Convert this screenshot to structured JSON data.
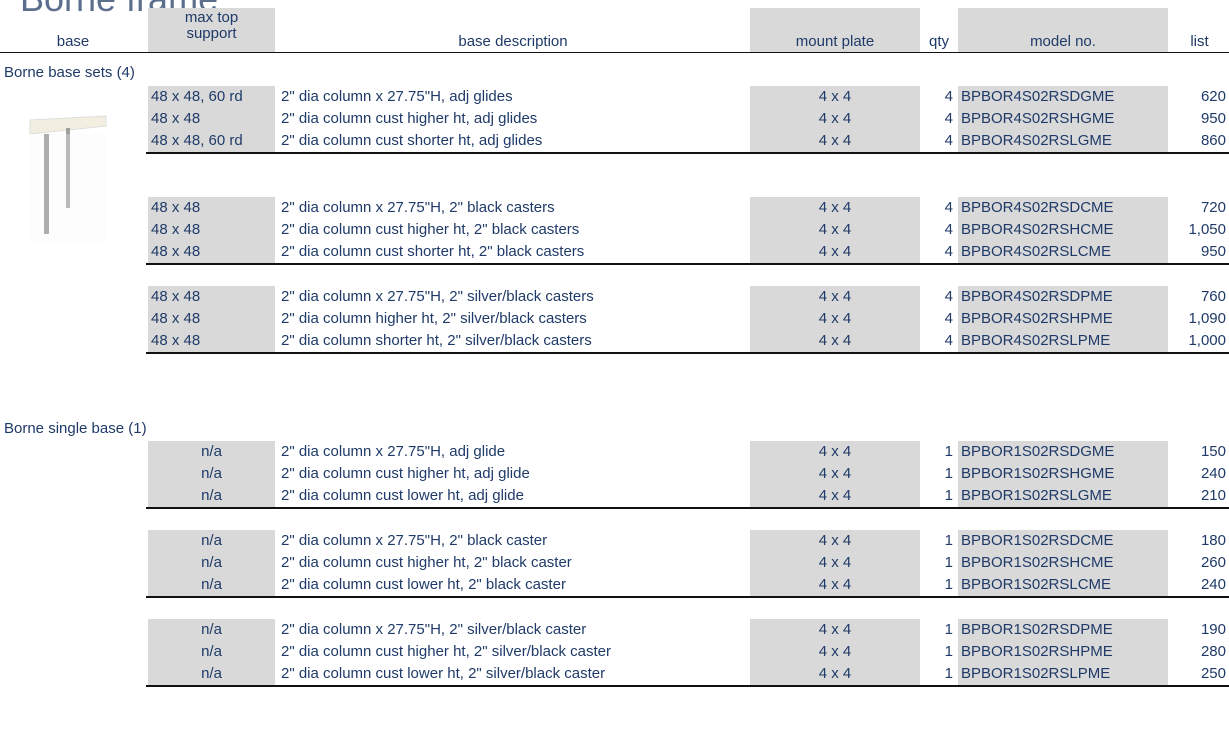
{
  "header": {
    "title": "Borne frame",
    "columns": [
      "base",
      "max top\nsupport",
      "base description",
      "mount plate",
      "qty",
      "model no.",
      "list"
    ]
  },
  "sections": [
    {
      "title": "Borne base sets (4)",
      "groups": [
        [
          [
            "48 x 48, 60 rd",
            "2\" dia column x 27.75\"H, adj glides",
            "4 x 4",
            "4",
            "BPBOR4S02RSDGME",
            "620"
          ],
          [
            "48 x 48",
            "2\" dia column cust higher ht, adj glides",
            "4 x 4",
            "4",
            "BPBOR4S02RSHGME",
            "950"
          ],
          [
            "48 x 48, 60 rd",
            "2\" dia column cust shorter ht, adj glides",
            "4 x 4",
            "4",
            "BPBOR4S02RSLGME",
            "860"
          ]
        ],
        [
          [
            "48 x 48",
            "2\" dia column x 27.75\"H, 2\" black casters",
            "4 x 4",
            "4",
            "BPBOR4S02RSDCME",
            "720"
          ],
          [
            "48 x 48",
            "2\" dia column cust higher ht, 2\" black casters",
            "4 x 4",
            "4",
            "BPBOR4S02RSHCME",
            "1,050"
          ],
          [
            "48 x 48",
            "2\" dia column cust shorter ht, 2\" black casters",
            "4 x 4",
            "4",
            "BPBOR4S02RSLCME",
            "950"
          ]
        ],
        [
          [
            "48 x 48",
            "2\" dia column x 27.75\"H, 2\" silver/black casters",
            "4 x 4",
            "4",
            "BPBOR4S02RSDPME",
            "760"
          ],
          [
            "48 x 48",
            "2\" dia column higher ht, 2\" silver/black casters",
            "4 x 4",
            "4",
            "BPBOR4S02RSHPME",
            "1,090"
          ],
          [
            "48 x 48",
            "2\" dia column shorter ht, 2\" silver/black casters",
            "4 x 4",
            "4",
            "BPBOR4S02RSLPME",
            "1,000"
          ]
        ]
      ]
    },
    {
      "title": "Borne single base (1)",
      "groups": [
        [
          [
            "n/a",
            "2\" dia column x 27.75\"H, adj glide",
            "4 x 4",
            "1",
            "BPBOR1S02RSDGME",
            "150"
          ],
          [
            "n/a",
            "2\" dia column cust higher ht, adj glide",
            "4 x 4",
            "1",
            "BPBOR1S02RSHGME",
            "240"
          ],
          [
            "n/a",
            "2\" dia column cust lower ht, adj glide",
            "4 x 4",
            "1",
            "BPBOR1S02RSLGME",
            "210"
          ]
        ],
        [
          [
            "n/a",
            "2\" dia column x 27.75\"H, 2\" black caster",
            "4 x 4",
            "1",
            "BPBOR1S02RSDCME",
            "180"
          ],
          [
            "n/a",
            "2\" dia column cust higher ht, 2\" black caster",
            "4 x 4",
            "1",
            "BPBOR1S02RSHCME",
            "260"
          ],
          [
            "n/a",
            "2\" dia column cust lower ht, 2\" black caster",
            "4 x 4",
            "1",
            "BPBOR1S02RSLCME",
            "240"
          ]
        ],
        [
          [
            "n/a",
            "2\" dia column x 27.75\"H, 2\" silver/black caster",
            "4 x 4",
            "1",
            "BPBOR1S02RSDPME",
            "190"
          ],
          [
            "n/a",
            "2\" dia column cust higher ht, 2\" silver/black caster",
            "4 x 4",
            "1",
            "BPBOR1S02RSHPME",
            "280"
          ],
          [
            "n/a",
            "2\" dia column cust lower ht, 2\" silver/black caster",
            "4 x 4",
            "1",
            "BPBOR1S02RSLPME",
            "250"
          ]
        ]
      ]
    }
  ]
}
